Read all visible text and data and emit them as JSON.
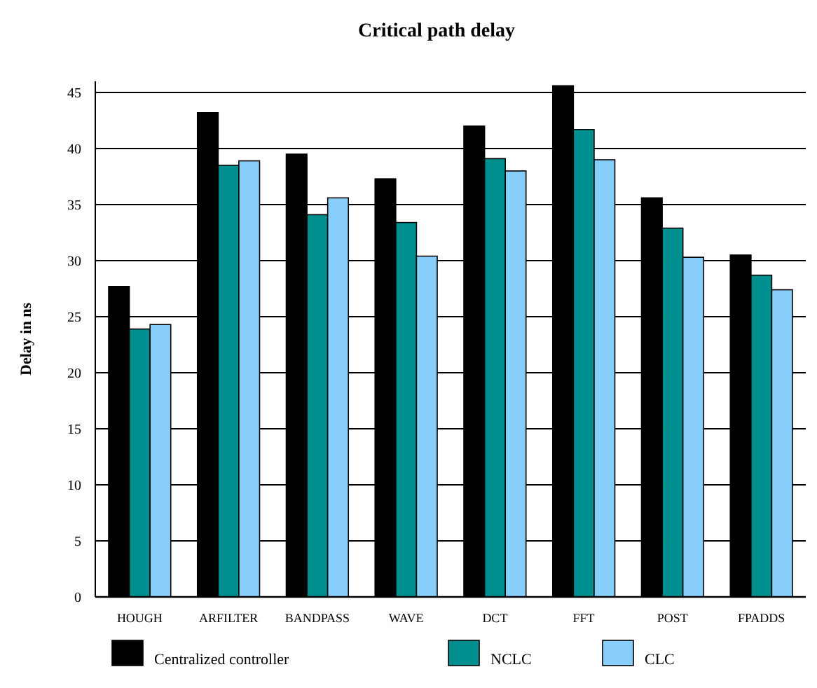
{
  "chart_data": {
    "type": "bar",
    "title": "Critical path delay",
    "ylabel": "Delay in ns",
    "categories": [
      "HOUGH",
      "ARFILTER",
      "BANDPASS",
      "WAVE",
      "DCT",
      "FFT",
      "POST",
      "FPADDS"
    ],
    "series": [
      {
        "name": "Centralized controller",
        "color": "#000000",
        "values": [
          27.7,
          43.2,
          39.5,
          37.3,
          42,
          45.6,
          35.6,
          30.5
        ]
      },
      {
        "name": "NCLC",
        "color": "#008f8f",
        "values": [
          23.9,
          38.5,
          34.1,
          33.4,
          39.1,
          41.7,
          32.9,
          28.7
        ]
      },
      {
        "name": "CLC",
        "color": "#87cefa",
        "values": [
          24.3,
          38.9,
          35.6,
          30.4,
          38,
          39,
          30.3,
          27.4
        ]
      }
    ],
    "ylim": [
      0,
      46
    ],
    "yticks": [
      0,
      5,
      10,
      15,
      20,
      25,
      30,
      35,
      40,
      45
    ],
    "grid": "y",
    "legend": "bottom"
  }
}
